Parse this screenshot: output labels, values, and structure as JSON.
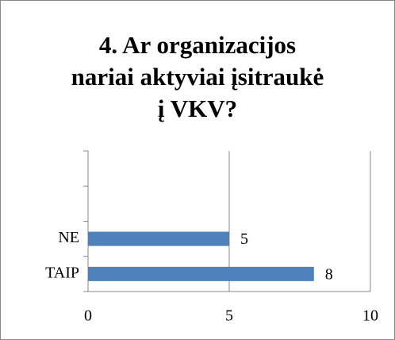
{
  "chart_data": {
    "type": "bar",
    "orientation": "horizontal",
    "title": [
      "4. Ar organizacijos",
      "nariai aktyviai įsitraukė",
      "į VKV?"
    ],
    "categories": [
      "TAIP",
      "NE",
      null,
      null
    ],
    "values": [
      8,
      5,
      null,
      null
    ],
    "color": "#4f81bd",
    "xlim": [
      0,
      10
    ],
    "xticks": [
      0,
      5,
      10
    ],
    "grid": true
  }
}
